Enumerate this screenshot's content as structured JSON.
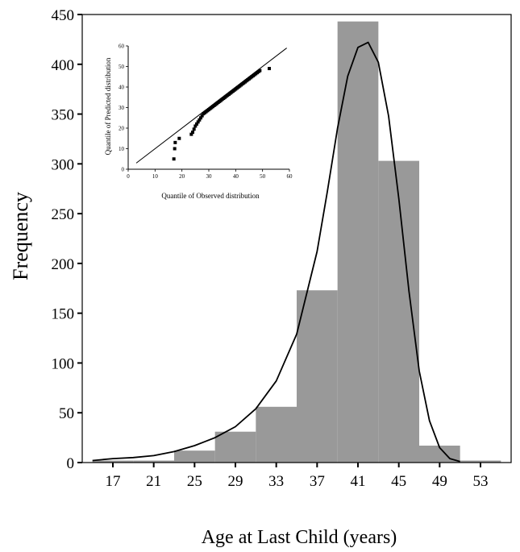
{
  "chart_data": [
    {
      "type": "bar",
      "xlabel": "Age at Last Child (years)",
      "ylabel": "Frequency",
      "ylim": [
        0,
        450
      ],
      "yticks": [
        0,
        50,
        100,
        150,
        200,
        250,
        300,
        350,
        400,
        450
      ],
      "xticks": [
        17,
        21,
        25,
        29,
        33,
        37,
        41,
        45,
        49,
        53
      ],
      "xlim": [
        14,
        56
      ],
      "bar_color": "#999999",
      "bins": [
        {
          "from": 15,
          "to": 19,
          "value": 2
        },
        {
          "from": 19,
          "to": 23,
          "value": 2
        },
        {
          "from": 23,
          "to": 27,
          "value": 12
        },
        {
          "from": 27,
          "to": 31,
          "value": 31
        },
        {
          "from": 31,
          "to": 35,
          "value": 56
        },
        {
          "from": 35,
          "to": 39,
          "value": 173
        },
        {
          "from": 39,
          "to": 43,
          "value": 443
        },
        {
          "from": 43,
          "to": 47,
          "value": 303
        },
        {
          "from": 47,
          "to": 51,
          "value": 17
        },
        {
          "from": 51,
          "to": 55,
          "value": 2
        }
      ],
      "fitted_curve": {
        "x": [
          15,
          17,
          19,
          21,
          23,
          25,
          27,
          29,
          31,
          33,
          35,
          37,
          38,
          39,
          40,
          41,
          42,
          43,
          44,
          45,
          46,
          47,
          48,
          49,
          50,
          51
        ],
        "y": [
          2,
          4,
          5,
          7,
          11,
          17,
          25,
          36,
          54,
          82,
          129,
          212,
          272,
          336,
          388,
          417,
          422,
          402,
          348,
          265,
          172,
          92,
          42,
          15,
          4,
          1
        ]
      }
    },
    {
      "type": "scatter",
      "role": "inset",
      "xlabel": "Quantile of Observed distribution",
      "ylabel": "Quantile of Predicted distribution",
      "xlim": [
        0,
        60
      ],
      "ylim": [
        0,
        60
      ],
      "xticks": [
        0,
        10,
        20,
        30,
        40,
        50,
        60
      ],
      "yticks": [
        0,
        10,
        20,
        30,
        40,
        50,
        60
      ],
      "reference_line": {
        "x": [
          3,
          59
        ],
        "y": [
          3,
          59
        ]
      },
      "points": {
        "x": [
          17,
          17.3,
          17.5,
          19,
          23.5,
          24,
          24.5,
          25,
          25.5,
          26,
          26.5,
          27,
          27.5,
          28,
          28.5,
          29,
          29.5,
          30,
          30.5,
          31,
          31.5,
          32,
          32.5,
          33,
          33.5,
          34,
          34.5,
          35,
          35.5,
          36,
          36.5,
          37,
          37.5,
          38,
          38.5,
          39,
          39.5,
          40,
          40.5,
          41,
          41.5,
          42,
          42.5,
          43,
          43.5,
          44,
          44.5,
          45,
          45.5,
          46,
          46.5,
          47,
          47.5,
          48,
          48.5,
          49,
          52.5
        ],
        "y": [
          5,
          10,
          13,
          15,
          17,
          18,
          19.5,
          21,
          22,
          23,
          24,
          25,
          26,
          27,
          27.5,
          28,
          28.5,
          29,
          29.5,
          30,
          30.5,
          31,
          31.5,
          32,
          32.5,
          33,
          33.5,
          34,
          34.5,
          35,
          35.5,
          36,
          36.5,
          37,
          37.5,
          38,
          38.5,
          39,
          39.5,
          40,
          40.5,
          41,
          41.5,
          42,
          42.5,
          43,
          43.5,
          44,
          44.5,
          45,
          45.5,
          46,
          46.5,
          47,
          47.5,
          48,
          49
        ]
      }
    }
  ]
}
